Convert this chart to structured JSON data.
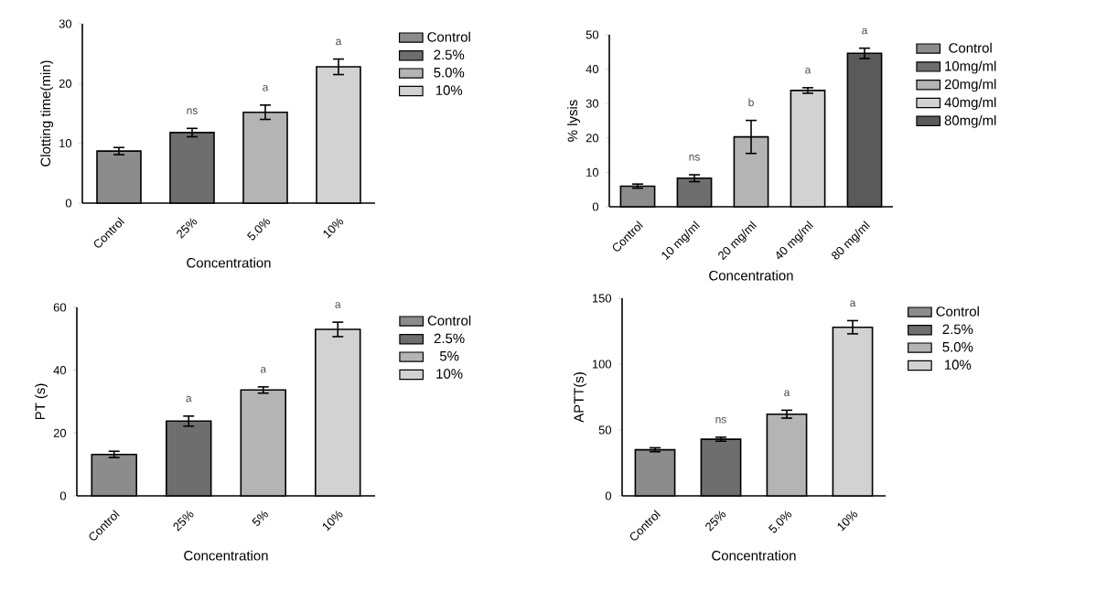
{
  "chart_data": [
    {
      "type": "bar",
      "xlabel": "Concentration",
      "ylabel": "Clotting time(min)",
      "categories": [
        "Control",
        "25%",
        "5.0%",
        "10%"
      ],
      "ylim": [
        0,
        30
      ],
      "yticks": [
        0,
        10,
        20,
        30
      ],
      "legend": "top right",
      "series": [
        {
          "name": "Control",
          "color": "#8c8c8c",
          "values": [
            8.7,
            null,
            null,
            null
          ],
          "errors": [
            0.6,
            null,
            null,
            null
          ]
        },
        {
          "name": "2.5%",
          "color": "#6e6e6e",
          "values": [
            null,
            11.8,
            null,
            null
          ],
          "errors": [
            null,
            0.7,
            null,
            null
          ]
        },
        {
          "name": "5.0%",
          "color": "#b4b4b4",
          "values": [
            null,
            null,
            15.2,
            null
          ],
          "errors": [
            null,
            null,
            1.2,
            null
          ]
        },
        {
          "name": "10%",
          "color": "#d2d2d2",
          "values": [
            null,
            null,
            null,
            22.8
          ],
          "errors": [
            null,
            null,
            null,
            1.3
          ]
        }
      ],
      "annotations": [
        "ns",
        "a",
        "a"
      ]
    },
    {
      "type": "bar",
      "xlabel": "Concentration",
      "ylabel": "% lysis",
      "categories": [
        "Control",
        "10 mg/ml",
        "20 mg/ml",
        "40 mg/ml",
        "80 mg/ml"
      ],
      "ylim": [
        0,
        50
      ],
      "yticks": [
        0,
        10,
        20,
        30,
        40,
        50
      ],
      "legend": "top right",
      "series": [
        {
          "name": "Control",
          "color": "#8c8c8c",
          "values": [
            6.0,
            null,
            null,
            null,
            null
          ],
          "errors": [
            0.6,
            null,
            null,
            null,
            null
          ]
        },
        {
          "name": "10mg/ml",
          "color": "#6e6e6e",
          "values": [
            null,
            8.3,
            null,
            null,
            null
          ],
          "errors": [
            null,
            1.0,
            null,
            null,
            null
          ]
        },
        {
          "name": "20mg/ml",
          "color": "#b4b4b4",
          "values": [
            null,
            null,
            20.3,
            null,
            null
          ],
          "errors": [
            null,
            null,
            4.8,
            null,
            null
          ]
        },
        {
          "name": "40mg/ml",
          "color": "#d2d2d2",
          "values": [
            null,
            null,
            null,
            33.8,
            null
          ],
          "errors": [
            null,
            null,
            null,
            0.8,
            null
          ]
        },
        {
          "name": "80mg/ml",
          "color": "#5a5a5a",
          "values": [
            null,
            null,
            null,
            null,
            44.6
          ],
          "errors": [
            null,
            null,
            null,
            null,
            1.5
          ]
        }
      ],
      "annotations": [
        "ns",
        "b",
        "a",
        "a"
      ]
    },
    {
      "type": "bar",
      "xlabel": "Concentration",
      "ylabel": "PT (s)",
      "categories": [
        "Control",
        "25%",
        "5%",
        "10%"
      ],
      "ylim": [
        0,
        60
      ],
      "yticks": [
        0,
        20,
        40,
        60
      ],
      "legend": "top right",
      "series": [
        {
          "name": "Control",
          "color": "#8c8c8c",
          "values": [
            13.2,
            null,
            null,
            null
          ],
          "errors": [
            1.0,
            null,
            null,
            null
          ]
        },
        {
          "name": "2.5%",
          "color": "#6e6e6e",
          "values": [
            null,
            23.8,
            null,
            null
          ],
          "errors": [
            null,
            1.6,
            null,
            null
          ]
        },
        {
          "name": "5%",
          "color": "#b4b4b4",
          "values": [
            null,
            null,
            33.7,
            null
          ],
          "errors": [
            null,
            null,
            1.0,
            null
          ]
        },
        {
          "name": "10%",
          "color": "#d2d2d2",
          "values": [
            null,
            null,
            null,
            53.0
          ],
          "errors": [
            null,
            null,
            null,
            2.3
          ]
        }
      ],
      "annotations": [
        "a",
        "a",
        "a"
      ]
    },
    {
      "type": "bar",
      "xlabel": "Concentration",
      "ylabel": "APTT(s)",
      "categories": [
        "Control",
        "25%",
        "5.0%",
        "10%"
      ],
      "ylim": [
        0,
        150
      ],
      "yticks": [
        0,
        50,
        100,
        150
      ],
      "legend": "top right",
      "series": [
        {
          "name": "Control",
          "color": "#8c8c8c",
          "values": [
            35,
            null,
            null,
            null
          ],
          "errors": [
            1.5,
            null,
            null,
            null
          ]
        },
        {
          "name": "2.5%",
          "color": "#6e6e6e",
          "values": [
            null,
            43,
            null,
            null
          ],
          "errors": [
            null,
            1.5,
            null,
            null
          ]
        },
        {
          "name": "5.0%",
          "color": "#b4b4b4",
          "values": [
            null,
            null,
            62,
            null
          ],
          "errors": [
            null,
            null,
            3,
            null
          ]
        },
        {
          "name": "10%",
          "color": "#d2d2d2",
          "values": [
            null,
            null,
            null,
            128
          ],
          "errors": [
            null,
            null,
            null,
            5
          ]
        }
      ],
      "annotations": [
        "ns",
        "a",
        "a"
      ]
    }
  ]
}
